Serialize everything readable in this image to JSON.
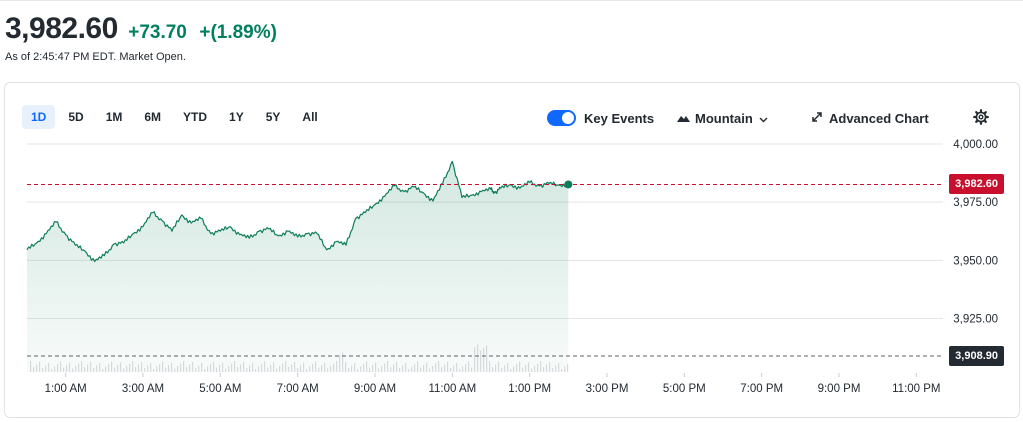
{
  "quote": {
    "price": "3,982.60",
    "change": "+73.70",
    "change_pct": "+(1.89%)",
    "as_of": "As of 2:45:47 PM EDT. Market Open."
  },
  "ranges": [
    "1D",
    "5D",
    "1M",
    "6M",
    "YTD",
    "1Y",
    "5Y",
    "All"
  ],
  "active_range": "1D",
  "toolbar": {
    "key_events_label": "Key Events",
    "key_events_on": true,
    "chart_type_label": "Mountain",
    "advanced_label": "Advanced Chart",
    "icons": [
      "mountain-icon",
      "chevron-down-icon",
      "expand-arrows-icon",
      "gear-icon"
    ]
  },
  "colors": {
    "up": "#00805f",
    "line": "#0e7d5a",
    "last_badge": "#c8102e",
    "prev_badge": "#232a31",
    "accent": "#0f69ff"
  },
  "chart_data": {
    "type": "area",
    "x_ticks": [
      "1:00 AM",
      "3:00 AM",
      "5:00 AM",
      "7:00 AM",
      "9:00 AM",
      "11:00 AM",
      "1:00 PM",
      "3:00 PM",
      "5:00 PM",
      "7:00 PM",
      "9:00 PM",
      "11:00 PM"
    ],
    "y_ticks": [
      "4,000.00",
      "3,975.00",
      "3,950.00",
      "3,925.00"
    ],
    "y_tick_values": [
      4000,
      3975,
      3950,
      3925
    ],
    "ylim": [
      3902,
      4003
    ],
    "x_range_hours": [
      0,
      24
    ],
    "last_price": 3982.6,
    "last_price_label": "3,982.60",
    "prev_close": 3908.9,
    "prev_close_label": "3,908.90",
    "series": [
      {
        "x": [
          0.0,
          0.25,
          0.5,
          0.75,
          1.0,
          1.25,
          1.5,
          1.75,
          2.0,
          2.25,
          2.5,
          2.75,
          3.0,
          3.25,
          3.5,
          3.75,
          4.0,
          4.25,
          4.5,
          4.75,
          5.0,
          5.25,
          5.5,
          5.75,
          6.0,
          6.25,
          6.5,
          6.75,
          7.0,
          7.25,
          7.5,
          7.75,
          8.0,
          8.25,
          8.5,
          8.75,
          9.0,
          9.25,
          9.5,
          9.75,
          10.0,
          10.25,
          10.5,
          10.75,
          11.0,
          11.25,
          11.5,
          11.75,
          12.0,
          12.1,
          12.25,
          12.5,
          12.75,
          13.0,
          13.25,
          13.5,
          13.75,
          14.0,
          14.25,
          14.5,
          14.75
        ],
        "values": [
          3954.5,
          3957.5,
          3961.5,
          3966.5,
          3961.0,
          3956.5,
          3954.0,
          3949.5,
          3952.0,
          3957.0,
          3957.5,
          3961.5,
          3964.5,
          3970.5,
          3967.0,
          3962.5,
          3969.5,
          3966.0,
          3968.0,
          3961.5,
          3962.5,
          3964.5,
          3961.0,
          3959.5,
          3962.5,
          3963.5,
          3960.5,
          3962.5,
          3960.0,
          3961.5,
          3961.5,
          3954.5,
          3958.0,
          3956.5,
          3968.0,
          3970.5,
          3974.0,
          3977.5,
          3982.0,
          3979.5,
          3981.5,
          3979.0,
          3975.5,
          3983.0,
          3992.5,
          3977.0,
          3978.0,
          3979.5,
          3980.5,
          3979.0,
          3981.0,
          3982.5,
          3981.0,
          3983.5,
          3982.0,
          3983.0,
          3982.3,
          3982.6,
          3982.6,
          3982.6,
          3982.6
        ],
        "visible_points": 58
      }
    ]
  }
}
